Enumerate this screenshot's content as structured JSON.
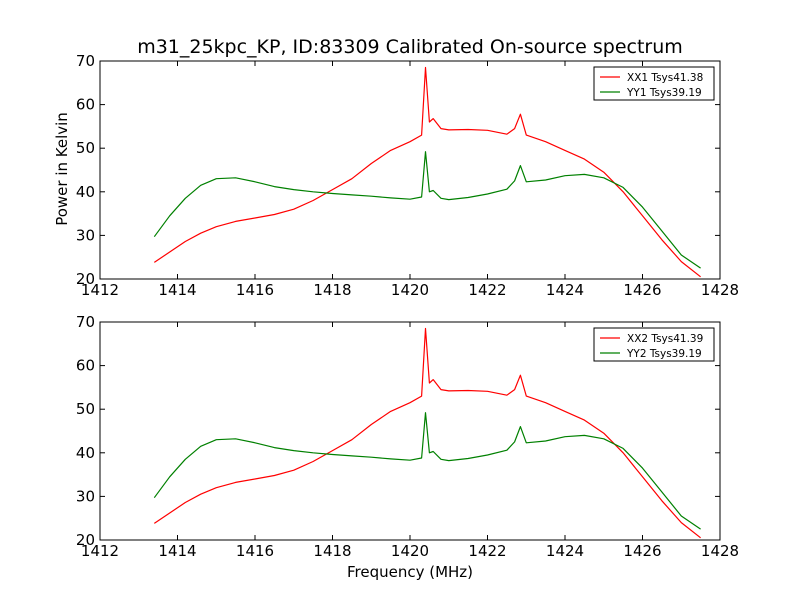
{
  "chart_data": [
    {
      "type": "line",
      "title": "m31_25kpc_KP, ID:83309 Calibrated On-source spectrum",
      "xlabel": "",
      "ylabel": "Power in Kelvin",
      "xlim": [
        1412,
        1428
      ],
      "ylim": [
        20,
        70
      ],
      "xticks": [
        1412,
        1414,
        1416,
        1418,
        1420,
        1422,
        1424,
        1426,
        1428
      ],
      "yticks": [
        20,
        30,
        40,
        50,
        60,
        70
      ],
      "grid": false,
      "legend_position": "top-right",
      "series": [
        {
          "name": "XX1 Tsys41.38",
          "color": "#ff0000",
          "x": [
            1413.4,
            1413.8,
            1414.2,
            1414.6,
            1415.0,
            1415.5,
            1416.0,
            1416.5,
            1417.0,
            1417.5,
            1418.0,
            1418.5,
            1419.0,
            1419.5,
            1420.0,
            1420.3,
            1420.4,
            1420.5,
            1420.6,
            1420.8,
            1421.0,
            1421.5,
            1422.0,
            1422.5,
            1422.7,
            1422.85,
            1423.0,
            1423.5,
            1424.0,
            1424.5,
            1425.0,
            1425.5,
            1426.0,
            1426.5,
            1427.0,
            1427.5
          ],
          "y": [
            23.8,
            26.2,
            28.6,
            30.5,
            32.0,
            33.2,
            34.0,
            34.8,
            36.0,
            38.0,
            40.5,
            43.0,
            46.5,
            49.5,
            51.5,
            53.0,
            68.5,
            56.0,
            56.8,
            54.5,
            54.2,
            54.3,
            54.1,
            53.2,
            54.5,
            57.8,
            53.0,
            51.5,
            49.5,
            47.5,
            44.5,
            40.0,
            34.5,
            29.0,
            24.0,
            20.5
          ]
        },
        {
          "name": "YY1 Tsys39.19",
          "color": "#008000",
          "x": [
            1413.4,
            1413.8,
            1414.2,
            1414.6,
            1415.0,
            1415.5,
            1416.0,
            1416.5,
            1417.0,
            1417.5,
            1418.0,
            1418.5,
            1419.0,
            1419.5,
            1420.0,
            1420.3,
            1420.4,
            1420.5,
            1420.6,
            1420.8,
            1421.0,
            1421.5,
            1422.0,
            1422.5,
            1422.7,
            1422.85,
            1423.0,
            1423.5,
            1424.0,
            1424.5,
            1425.0,
            1425.5,
            1426.0,
            1426.5,
            1427.0,
            1427.5
          ],
          "y": [
            29.7,
            34.5,
            38.5,
            41.5,
            43.0,
            43.2,
            42.3,
            41.2,
            40.5,
            40.0,
            39.6,
            39.3,
            39.0,
            38.6,
            38.3,
            38.8,
            49.2,
            40.0,
            40.3,
            38.5,
            38.2,
            38.7,
            39.5,
            40.6,
            42.5,
            46.0,
            42.3,
            42.7,
            43.7,
            44.0,
            43.2,
            41.0,
            36.5,
            31.0,
            25.5,
            22.5
          ]
        }
      ]
    },
    {
      "type": "line",
      "title": "",
      "xlabel": "Frequency (MHz)",
      "ylabel": "",
      "xlim": [
        1412,
        1428
      ],
      "ylim": [
        20,
        70
      ],
      "xticks": [
        1412,
        1414,
        1416,
        1418,
        1420,
        1422,
        1424,
        1426,
        1428
      ],
      "yticks": [
        20,
        30,
        40,
        50,
        60,
        70
      ],
      "grid": false,
      "legend_position": "top-right",
      "series": [
        {
          "name": "XX2 Tsys41.39",
          "color": "#ff0000",
          "x": [
            1413.4,
            1413.8,
            1414.2,
            1414.6,
            1415.0,
            1415.5,
            1416.0,
            1416.5,
            1417.0,
            1417.5,
            1418.0,
            1418.5,
            1419.0,
            1419.5,
            1420.0,
            1420.3,
            1420.4,
            1420.5,
            1420.6,
            1420.8,
            1421.0,
            1421.5,
            1422.0,
            1422.5,
            1422.7,
            1422.85,
            1423.0,
            1423.5,
            1424.0,
            1424.5,
            1425.0,
            1425.5,
            1426.0,
            1426.5,
            1427.0,
            1427.5
          ],
          "y": [
            23.8,
            26.2,
            28.6,
            30.5,
            32.0,
            33.2,
            34.0,
            34.8,
            36.0,
            38.0,
            40.5,
            43.0,
            46.5,
            49.5,
            51.5,
            53.0,
            68.5,
            56.0,
            56.8,
            54.5,
            54.2,
            54.3,
            54.1,
            53.2,
            54.5,
            57.8,
            53.0,
            51.5,
            49.5,
            47.5,
            44.5,
            40.0,
            34.5,
            29.0,
            24.0,
            20.5
          ]
        },
        {
          "name": "YY2 Tsys39.19",
          "color": "#008000",
          "x": [
            1413.4,
            1413.8,
            1414.2,
            1414.6,
            1415.0,
            1415.5,
            1416.0,
            1416.5,
            1417.0,
            1417.5,
            1418.0,
            1418.5,
            1419.0,
            1419.5,
            1420.0,
            1420.3,
            1420.4,
            1420.5,
            1420.6,
            1420.8,
            1421.0,
            1421.5,
            1422.0,
            1422.5,
            1422.7,
            1422.85,
            1423.0,
            1423.5,
            1424.0,
            1424.5,
            1425.0,
            1425.5,
            1426.0,
            1426.5,
            1427.0,
            1427.5
          ],
          "y": [
            29.7,
            34.5,
            38.5,
            41.5,
            43.0,
            43.2,
            42.3,
            41.2,
            40.5,
            40.0,
            39.6,
            39.3,
            39.0,
            38.6,
            38.3,
            38.8,
            49.2,
            40.0,
            40.3,
            38.5,
            38.2,
            38.7,
            39.5,
            40.6,
            42.5,
            46.0,
            42.3,
            42.7,
            43.7,
            44.0,
            43.2,
            41.0,
            36.5,
            31.0,
            25.5,
            22.5
          ]
        }
      ]
    }
  ]
}
